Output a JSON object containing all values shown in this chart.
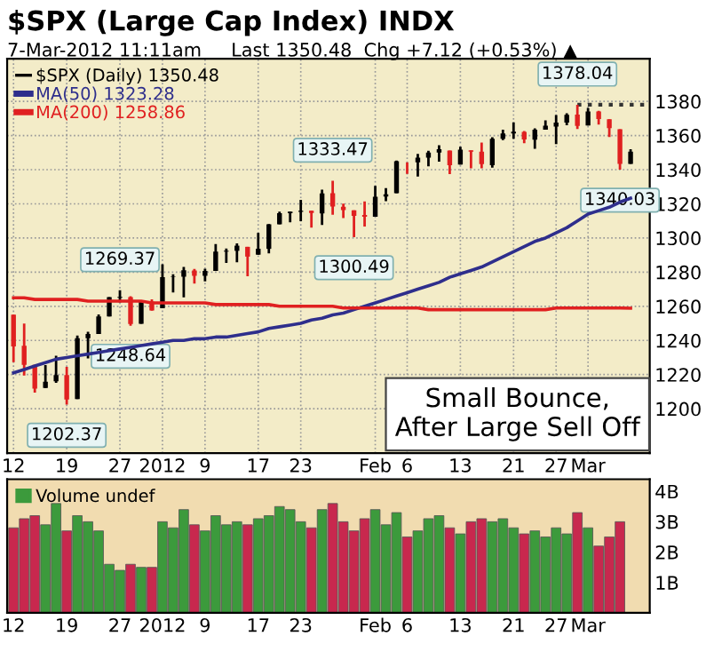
{
  "chart_data": [
    {
      "type": "candlestick",
      "title": "$SPX (Large Cap Index) INDX",
      "subtitle": "7-Mar-2012 11:11am     Last 1350.48  Chg +7.12 (+0.53%) ▲",
      "categories": [
        "12",
        null,
        null,
        null,
        null,
        "19",
        null,
        null,
        null,
        null,
        "27",
        null,
        null,
        null,
        "2012",
        null,
        null,
        null,
        "9",
        null,
        null,
        null,
        null,
        "17",
        null,
        null,
        null,
        "23",
        null,
        null,
        null,
        null,
        null,
        null,
        "Feb",
        null,
        null,
        "6",
        null,
        null,
        null,
        null,
        "13",
        null,
        null,
        null,
        null,
        "21",
        null,
        null,
        null,
        "27",
        null,
        null,
        "Mar",
        null,
        null,
        null,
        null
      ],
      "series": [
        {
          "type": "candlestick",
          "name": "$SPX (Daily) 1350.48",
          "ohlc": [
            [
              1255.05,
              1255.05,
              1227.25,
              1236.47
            ],
            [
              1236.83,
              1249.86,
              1219.43,
              1225.73
            ],
            [
              1225.73,
              1225.73,
              1209.47,
              1211.82
            ],
            [
              1212.12,
              1225.6,
              1212.12,
              1215.75
            ],
            [
              1216.09,
              1231.04,
              1215.2,
              1219.66
            ],
            [
              1219.74,
              1224.57,
              1202.37,
              1205.35
            ],
            [
              1205.72,
              1242.82,
              1205.72,
              1241.3
            ],
            [
              1241.25,
              1245.09,
              1229.51,
              1243.72
            ],
            [
              1243.72,
              1255.22,
              1243.72,
              1254.0
            ],
            [
              1254.0,
              1265.42,
              1254.0,
              1265.33
            ],
            [
              1265.02,
              1269.37,
              1262.3,
              1265.43
            ],
            [
              1265.38,
              1265.85,
              1248.64,
              1249.64
            ],
            [
              1249.75,
              1263.54,
              1249.75,
              1263.02
            ],
            [
              1262.82,
              1264.12,
              1257.46,
              1257.6
            ],
            [
              1258.86,
              1284.62,
              1258.86,
              1277.06
            ],
            [
              1277.03,
              1278.73,
              1268.1,
              1277.3
            ],
            [
              1277.3,
              1283.05,
              1265.26,
              1281.06
            ],
            [
              1280.93,
              1281.84,
              1273.34,
              1277.81
            ],
            [
              1277.83,
              1281.99,
              1274.55,
              1280.7
            ],
            [
              1280.77,
              1296.46,
              1280.77,
              1292.08
            ],
            [
              1292.02,
              1293.8,
              1285.41,
              1292.48
            ],
            [
              1292.48,
              1296.82,
              1285.77,
              1295.5
            ],
            [
              1294.82,
              1294.82,
              1277.58,
              1289.09
            ],
            [
              1290.22,
              1303.0,
              1290.22,
              1293.67
            ],
            [
              1293.65,
              1308.11,
              1290.99,
              1308.04
            ],
            [
              1308.07,
              1315.49,
              1308.07,
              1314.5
            ],
            [
              1314.49,
              1315.38,
              1309.17,
              1315.38
            ],
            [
              1315.29,
              1322.28,
              1309.89,
              1316.0
            ],
            [
              1315.96,
              1315.96,
              1306.06,
              1314.65
            ],
            [
              1314.4,
              1328.3,
              1307.65,
              1326.06
            ],
            [
              1326.28,
              1333.47,
              1313.6,
              1318.43
            ],
            [
              1318.25,
              1320.06,
              1311.72,
              1316.33
            ],
            [
              1316.16,
              1316.16,
              1300.49,
              1313.01
            ],
            [
              1313.53,
              1321.41,
              1306.69,
              1312.41
            ],
            [
              1312.45,
              1330.52,
              1312.45,
              1324.09
            ],
            [
              1324.24,
              1329.19,
              1321.57,
              1325.54
            ],
            [
              1326.21,
              1345.34,
              1326.21,
              1344.9
            ],
            [
              1344.32,
              1344.36,
              1337.52,
              1344.33
            ],
            [
              1344.33,
              1349.24,
              1335.92,
              1347.05
            ],
            [
              1347.04,
              1351.0,
              1341.95,
              1349.96
            ],
            [
              1349.97,
              1354.32,
              1344.63,
              1351.95
            ],
            [
              1351.21,
              1351.21,
              1337.35,
              1342.64
            ],
            [
              1343.06,
              1353.35,
              1343.06,
              1351.77
            ],
            [
              1351.3,
              1351.3,
              1340.83,
              1350.5
            ],
            [
              1350.52,
              1355.87,
              1340.8,
              1343.23
            ],
            [
              1342.61,
              1359.02,
              1341.22,
              1358.04
            ],
            [
              1358.06,
              1363.4,
              1357.24,
              1361.23
            ],
            [
              1361.22,
              1367.76,
              1358.11,
              1362.21
            ],
            [
              1362.11,
              1362.7,
              1355.53,
              1357.66
            ],
            [
              1357.53,
              1364.24,
              1352.28,
              1363.46
            ],
            [
              1363.46,
              1368.92,
              1363.46,
              1365.74
            ],
            [
              1365.2,
              1371.94,
              1354.92,
              1367.59
            ],
            [
              1367.56,
              1373.09,
              1365.97,
              1372.18
            ],
            [
              1372.2,
              1378.04,
              1363.81,
              1365.68
            ],
            [
              1365.9,
              1376.17,
              1365.9,
              1374.09
            ],
            [
              1374.09,
              1374.53,
              1366.42,
              1369.63
            ],
            [
              1369.59,
              1369.59,
              1359.13,
              1364.33
            ],
            [
              1363.63,
              1363.63,
              1340.03,
              1343.36
            ],
            [
              1343.39,
              1352.0,
              1343.39,
              1350.48
            ]
          ],
          "colors": [
            "#e02020",
            "#e02020",
            "#e02020",
            "#000000",
            "#000000",
            "#e02020",
            "#000000",
            "#000000",
            "#000000",
            "#000000",
            "#000000",
            "#e02020",
            "#000000",
            "#e02020",
            "#000000",
            "#000000",
            "#000000",
            "#e02020",
            "#000000",
            "#000000",
            "#000000",
            "#000000",
            "#e02020",
            "#000000",
            "#000000",
            "#000000",
            "#000000",
            "#000000",
            "#e02020",
            "#000000",
            "#e02020",
            "#e02020",
            "#e02020",
            "#e02020",
            "#000000",
            "#000000",
            "#000000",
            "#e02020",
            "#000000",
            "#000000",
            "#000000",
            "#e02020",
            "#000000",
            "#e02020",
            "#e02020",
            "#000000",
            "#000000",
            "#000000",
            "#e02020",
            "#000000",
            "#000000",
            "#000000",
            "#000000",
            "#e02020",
            "#000000",
            "#e02020",
            "#e02020",
            "#e02020",
            "#000000"
          ]
        },
        {
          "type": "line",
          "name": "MA(50) 1323.28",
          "color": "#2e2e8c",
          "values": [
            1221,
            1223,
            1225,
            1227,
            1229,
            1230,
            1231,
            1232,
            1233,
            1234,
            1235,
            1236,
            1237,
            1238,
            1239,
            1240,
            1240,
            1241,
            1241,
            1242,
            1242,
            1243,
            1244,
            1245,
            1247,
            1248,
            1249,
            1250,
            1252,
            1253,
            1255,
            1256,
            1258,
            1260,
            1262,
            1264,
            1266,
            1268,
            1270,
            1272,
            1274,
            1277,
            1279,
            1281,
            1283,
            1286,
            1289,
            1292,
            1295,
            1298,
            1300,
            1303,
            1306,
            1310,
            1314,
            1316,
            1318,
            1321,
            1323.28
          ]
        },
        {
          "type": "line",
          "name": "MA(200) 1258.86",
          "color": "#e02020",
          "values": [
            1265,
            1265,
            1264,
            1264,
            1264,
            1264,
            1264,
            1263,
            1263,
            1263,
            1263,
            1263,
            1263,
            1262,
            1262,
            1262,
            1262,
            1262,
            1262,
            1261,
            1261,
            1261,
            1261,
            1261,
            1261,
            1260,
            1260,
            1260,
            1260,
            1260,
            1260,
            1259,
            1259,
            1259,
            1259,
            1259,
            1259,
            1259,
            1259,
            1258,
            1258,
            1258,
            1258,
            1258,
            1258,
            1258,
            1258,
            1258,
            1258,
            1258,
            1258,
            1259,
            1259,
            1259,
            1259,
            1259,
            1259,
            1259,
            1258.86
          ]
        }
      ],
      "ylim": [
        1174,
        1405
      ],
      "yticks": [
        1200,
        1220,
        1240,
        1260,
        1280,
        1300,
        1320,
        1340,
        1360,
        1380
      ],
      "ref_lines": [
        {
          "axis": "y",
          "value": 1378.04,
          "line_style": "dotted",
          "color": "#333333"
        }
      ],
      "annotations": [
        {
          "text": "1378.04",
          "y": 1378.04
        },
        {
          "text": "1333.47",
          "y": 1333.47
        },
        {
          "text": "1269.37",
          "y": 1269.37
        },
        {
          "text": "1248.64",
          "y": 1248.64
        },
        {
          "text": "1202.37",
          "y": 1202.37
        },
        {
          "text": "1300.49",
          "y": 1300.49
        },
        {
          "text": "1340.03",
          "y": 1340.03
        },
        "Small Bounce,\nAfter Large Sell Off"
      ],
      "grid": true,
      "legend": "top left"
    },
    {
      "type": "bar",
      "categories": [
        "12",
        null,
        null,
        null,
        null,
        "19",
        null,
        null,
        null,
        null,
        "27",
        null,
        null,
        null,
        "2012",
        null,
        null,
        null,
        "9",
        null,
        null,
        null,
        null,
        "17",
        null,
        null,
        null,
        "23",
        null,
        null,
        null,
        null,
        null,
        null,
        "Feb",
        null,
        null,
        "6",
        null,
        null,
        null,
        null,
        "13",
        null,
        null,
        null,
        null,
        "21",
        null,
        null,
        null,
        "27",
        null,
        null,
        "Mar",
        null,
        null,
        null,
        null
      ],
      "series": [
        {
          "name": "Volume undef",
          "color": "#3c9a3c",
          "values": [
            2.8,
            3.1,
            3.2,
            2.9,
            3.6,
            2.7,
            3.2,
            3.0,
            2.7,
            1.6,
            1.4,
            1.6,
            1.5,
            1.5,
            3.0,
            2.8,
            3.4,
            2.9,
            2.7,
            3.2,
            2.9,
            3.0,
            2.9,
            3.1,
            3.2,
            3.5,
            3.4,
            3.0,
            2.8,
            3.4,
            3.6,
            3.0,
            2.7,
            3.1,
            3.4,
            2.9,
            3.3,
            2.5,
            2.7,
            3.1,
            3.2,
            2.8,
            2.6,
            3.0,
            3.1,
            3.0,
            3.1,
            2.8,
            2.6,
            2.7,
            2.5,
            2.8,
            2.6,
            3.3,
            2.8,
            2.2,
            2.5,
            3.0,
            null
          ],
          "colors": [
            "#c8284e",
            "#c8284e",
            "#c8284e",
            "#3c9a3c",
            "#3c9a3c",
            "#c8284e",
            "#3c9a3c",
            "#3c9a3c",
            "#3c9a3c",
            "#3c9a3c",
            "#3c9a3c",
            "#c8284e",
            "#3c9a3c",
            "#c8284e",
            "#3c9a3c",
            "#3c9a3c",
            "#3c9a3c",
            "#c8284e",
            "#3c9a3c",
            "#3c9a3c",
            "#3c9a3c",
            "#3c9a3c",
            "#c8284e",
            "#3c9a3c",
            "#3c9a3c",
            "#3c9a3c",
            "#3c9a3c",
            "#3c9a3c",
            "#c8284e",
            "#3c9a3c",
            "#c8284e",
            "#c8284e",
            "#c8284e",
            "#c8284e",
            "#3c9a3c",
            "#3c9a3c",
            "#3c9a3c",
            "#c8284e",
            "#3c9a3c",
            "#3c9a3c",
            "#3c9a3c",
            "#c8284e",
            "#3c9a3c",
            "#c8284e",
            "#c8284e",
            "#3c9a3c",
            "#3c9a3c",
            "#3c9a3c",
            "#c8284e",
            "#3c9a3c",
            "#3c9a3c",
            "#3c9a3c",
            "#3c9a3c",
            "#c8284e",
            "#3c9a3c",
            "#c8284e",
            "#c8284e",
            "#c8284e",
            "#3c9a3c"
          ]
        }
      ],
      "ylim": [
        0,
        4.4
      ],
      "yticks": [
        {
          "value": 1,
          "label": "1B"
        },
        {
          "value": 2,
          "label": "2B"
        },
        {
          "value": 3,
          "label": "3B"
        },
        {
          "value": 4,
          "label": "4B"
        }
      ],
      "legend": "top left"
    }
  ]
}
